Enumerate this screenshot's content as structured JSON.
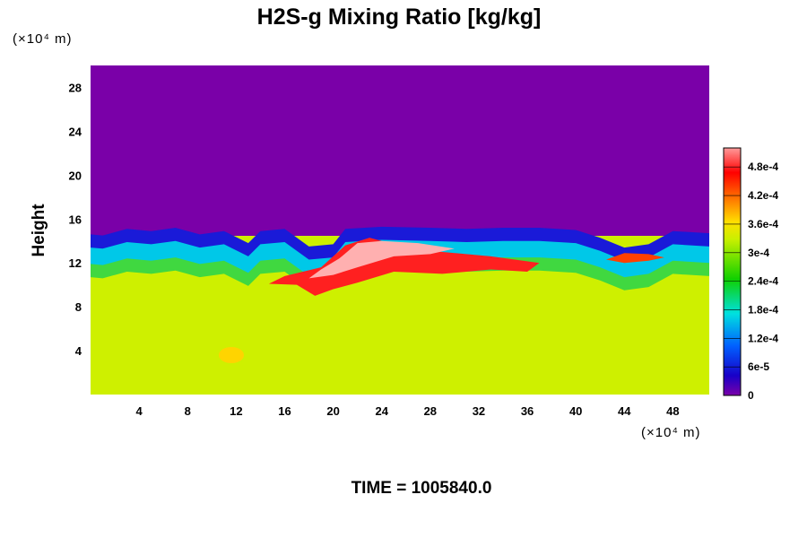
{
  "chart_data": {
    "type": "heatmap",
    "title": "H2S-g Mixing Ratio [kg/kg]",
    "xlabel": "",
    "ylabel": "Height",
    "x_unit_label": "(×10⁴ m)",
    "y_unit_label": "(×10⁴ m)",
    "xlim": [
      0,
      51
    ],
    "ylim": [
      0,
      30
    ],
    "x_ticks": [
      4,
      8,
      12,
      16,
      20,
      24,
      28,
      32,
      36,
      40,
      44,
      48
    ],
    "y_ticks": [
      4,
      8,
      12,
      16,
      20,
      24,
      28
    ],
    "colorbar": {
      "range": [
        0,
        0.00052
      ],
      "ticks": [
        "0",
        "6e-5",
        "1.2e-4",
        "1.8e-4",
        "2.4e-4",
        "3e-4",
        "3.6e-4",
        "4.2e-4",
        "4.8e-4"
      ],
      "tick_values": [
        0,
        6e-05,
        0.00012,
        0.00018,
        0.00024,
        0.0003,
        0.00036,
        0.00042,
        0.00048
      ]
    },
    "fields": {
      "upper_layer": {
        "y_from": 15,
        "y_to": 30,
        "value": 0
      },
      "lower_layer": {
        "y_from": 0,
        "y_to": 10.5,
        "value": 0.00033
      },
      "high_concentration_zone": {
        "x_range": [
          16,
          37
        ],
        "y_range": [
          9.5,
          14.5
        ],
        "peak_value": 0.00052
      }
    },
    "interface_height": [
      [
        0,
        14.3
      ],
      [
        1,
        14.2
      ],
      [
        3,
        14.8
      ],
      [
        5,
        14.6
      ],
      [
        7,
        14.9
      ],
      [
        9,
        14.3
      ],
      [
        11,
        14.6
      ],
      [
        13,
        13.5
      ],
      [
        14,
        14.6
      ],
      [
        16,
        14.8
      ],
      [
        18,
        13.2
      ],
      [
        20,
        13.4
      ],
      [
        21,
        14.8
      ],
      [
        24,
        15.0
      ],
      [
        28,
        14.9
      ],
      [
        31,
        14.8
      ],
      [
        34,
        14.9
      ],
      [
        37,
        14.9
      ],
      [
        40,
        14.7
      ],
      [
        42,
        14.0
      ],
      [
        44,
        13.1
      ],
      [
        46,
        13.4
      ],
      [
        48,
        14.6
      ],
      [
        51,
        14.4
      ]
    ]
  },
  "footer": {
    "time_label": "TIME = 1005840.0"
  }
}
